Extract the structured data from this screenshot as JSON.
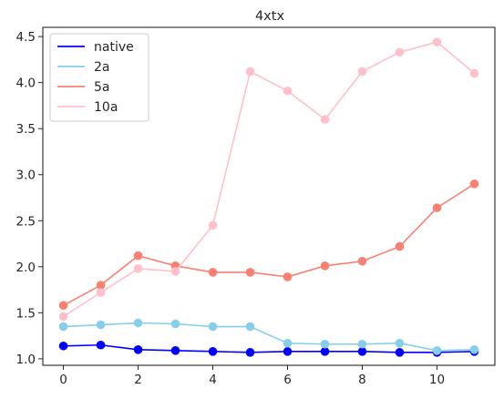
{
  "chart_data": {
    "type": "line",
    "title": "4xtx",
    "xlabel": "",
    "ylabel": "",
    "x": [
      0,
      1,
      2,
      3,
      4,
      5,
      6,
      7,
      8,
      9,
      10,
      11
    ],
    "xlim": [
      -0.55,
      11.55
    ],
    "ylim": [
      0.93,
      4.6
    ],
    "x_ticks": [
      0,
      2,
      4,
      6,
      8,
      10
    ],
    "y_ticks": [
      1.0,
      1.5,
      2.0,
      2.5,
      3.0,
      3.5,
      4.0,
      4.5
    ],
    "x_tick_labels": [
      "0",
      "2",
      "4",
      "6",
      "8",
      "10"
    ],
    "y_tick_labels": [
      "1.0",
      "1.5",
      "2.0",
      "2.5",
      "3.0",
      "3.5",
      "4.0",
      "4.5"
    ],
    "grid": false,
    "legend_position": "top-left",
    "series": [
      {
        "name": "native",
        "color": "#0000ff",
        "values": [
          1.14,
          1.15,
          1.1,
          1.09,
          1.08,
          1.07,
          1.08,
          1.08,
          1.08,
          1.07,
          1.07,
          1.08
        ]
      },
      {
        "name": "2a",
        "color": "#87ceeb",
        "values": [
          1.35,
          1.37,
          1.39,
          1.38,
          1.35,
          1.35,
          1.17,
          1.16,
          1.16,
          1.17,
          1.09,
          1.1
        ]
      },
      {
        "name": "5a",
        "color": "#fa8072",
        "values": [
          1.58,
          1.8,
          2.12,
          2.01,
          1.94,
          1.94,
          1.89,
          2.01,
          2.06,
          2.22,
          2.64,
          2.9
        ]
      },
      {
        "name": "10a",
        "color": "#ffc0cb",
        "values": [
          1.46,
          1.72,
          1.98,
          1.95,
          2.45,
          4.12,
          3.91,
          3.6,
          4.12,
          4.33,
          4.44,
          4.1
        ]
      }
    ]
  }
}
